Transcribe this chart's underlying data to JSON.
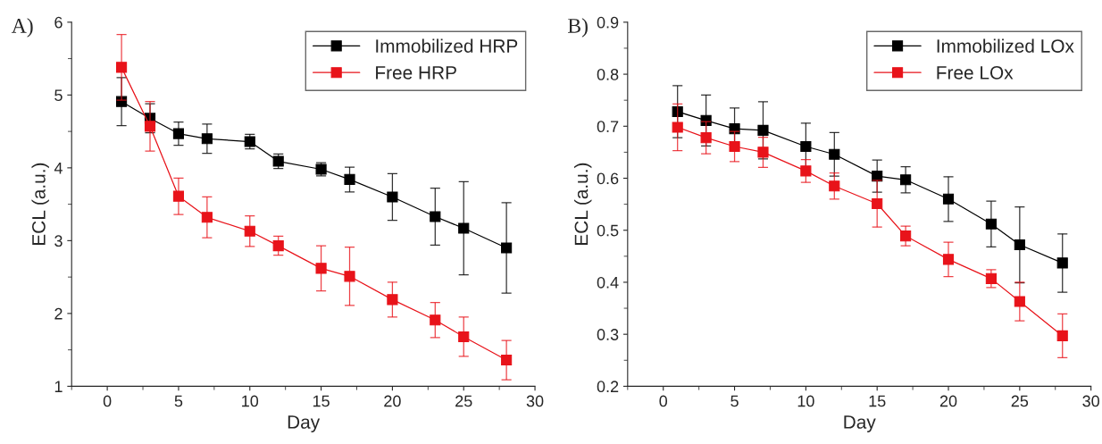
{
  "chart_data": [
    {
      "type": "line",
      "xlabel": "Day",
      "ylabel": "ECL (a.u.)",
      "annotations": [
        "A)"
      ],
      "xlim": [
        -2.5,
        30
      ],
      "xticks": [
        0,
        5,
        10,
        15,
        20,
        25,
        30
      ],
      "ylim": [
        1,
        6
      ],
      "yticks": [
        1,
        2,
        3,
        4,
        5,
        6
      ],
      "grid": false,
      "legend": "top right",
      "marker": "square",
      "line_style": "solid",
      "series": [
        {
          "name": "Immobilized HRP",
          "color": "#000000",
          "x": [
            1,
            3,
            5,
            7,
            10,
            12,
            15,
            17,
            20,
            23,
            25,
            28
          ],
          "values": [
            4.91,
            4.68,
            4.47,
            4.4,
            4.36,
            4.09,
            3.98,
            3.84,
            3.6,
            3.33,
            3.17,
            2.9
          ],
          "errors": [
            0.33,
            0.2,
            0.16,
            0.2,
            0.1,
            0.1,
            0.09,
            0.17,
            0.32,
            0.39,
            0.64,
            0.62
          ]
        },
        {
          "name": "Free HRP",
          "color": "#e8131a",
          "x": [
            1,
            3,
            5,
            7,
            10,
            12,
            15,
            17,
            20,
            23,
            25,
            28
          ],
          "values": [
            5.38,
            4.57,
            3.61,
            3.32,
            3.13,
            2.93,
            2.62,
            2.51,
            2.19,
            1.91,
            1.68,
            1.36
          ],
          "errors": [
            0.45,
            0.34,
            0.25,
            0.28,
            0.21,
            0.13,
            0.31,
            0.4,
            0.24,
            0.24,
            0.27,
            0.27
          ]
        }
      ]
    },
    {
      "type": "line",
      "xlabel": "Day",
      "ylabel": "ECL (a.u.)",
      "annotations": [
        "B)"
      ],
      "xlim": [
        -2.5,
        30
      ],
      "xticks": [
        0,
        5,
        10,
        15,
        20,
        25,
        30
      ],
      "ylim": [
        0.2,
        0.9
      ],
      "yticks": [
        0.2,
        0.3,
        0.4,
        0.5,
        0.6,
        0.7,
        0.8,
        0.9
      ],
      "grid": false,
      "legend": "top right",
      "marker": "square",
      "line_style": "solid",
      "series": [
        {
          "name": "Immobilized LOx",
          "color": "#000000",
          "x": [
            1,
            3,
            5,
            7,
            10,
            12,
            15,
            17,
            20,
            23,
            25,
            28
          ],
          "values": [
            0.728,
            0.711,
            0.695,
            0.692,
            0.661,
            0.646,
            0.604,
            0.597,
            0.56,
            0.512,
            0.472,
            0.437
          ],
          "errors": [
            0.05,
            0.049,
            0.04,
            0.055,
            0.045,
            0.042,
            0.031,
            0.025,
            0.043,
            0.044,
            0.073,
            0.056
          ]
        },
        {
          "name": "Free LOx",
          "color": "#e8131a",
          "x": [
            1,
            3,
            5,
            7,
            10,
            12,
            15,
            17,
            20,
            23,
            25,
            28
          ],
          "values": [
            0.698,
            0.678,
            0.661,
            0.65,
            0.614,
            0.585,
            0.551,
            0.489,
            0.444,
            0.407,
            0.363,
            0.297
          ],
          "errors": [
            0.045,
            0.031,
            0.029,
            0.029,
            0.022,
            0.025,
            0.045,
            0.019,
            0.033,
            0.017,
            0.037,
            0.042
          ]
        }
      ]
    }
  ]
}
